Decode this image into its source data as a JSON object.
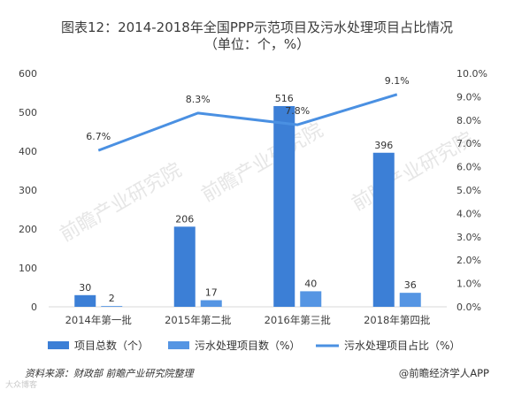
{
  "title_line1": "图表12：2014-2018年全国PPP示范项目及污水处理项目占比情况",
  "title_line2": "（单位：个，%）",
  "source_text": "资料来源：财政部 前瞻产业研究院整理",
  "brand_text": "@前瞻经济学人APP",
  "watermark_text": "前瞻产业研究院",
  "corner_watermark": "大众博客",
  "colors": {
    "bar_total": "#3c7fd6",
    "bar_sewage": "#5595e3",
    "line": "#4a90e2",
    "axis": "#d9d9d9"
  },
  "chart_data": {
    "type": "bar+line",
    "categories": [
      "2014年第一批",
      "2015年第二批",
      "2016年第三批",
      "2018年第四批"
    ],
    "series": [
      {
        "name": "项目总数（个）",
        "type": "bar",
        "axis": "left",
        "values": [
          30,
          206,
          516,
          396
        ]
      },
      {
        "name": "污水处理项目数（%）",
        "type": "bar",
        "axis": "left",
        "values": [
          2,
          17,
          40,
          36
        ]
      },
      {
        "name": "污水处理项目占比（%）",
        "type": "line",
        "axis": "right",
        "values": [
          6.7,
          8.3,
          7.8,
          9.1
        ]
      }
    ],
    "line_labels": [
      "6.7%",
      "8.3%",
      "7.8%",
      "9.1%"
    ],
    "ylim_left": [
      0,
      600
    ],
    "yticks_left": [
      "0",
      "100",
      "200",
      "300",
      "400",
      "500",
      "600"
    ],
    "ylim_right": [
      0,
      10
    ],
    "yticks_right": [
      "0.0%",
      "1.0%",
      "2.0%",
      "3.0%",
      "4.0%",
      "5.0%",
      "6.0%",
      "7.0%",
      "8.0%",
      "9.0%",
      "10.0%"
    ],
    "legend_position": "bottom",
    "grid": false
  }
}
